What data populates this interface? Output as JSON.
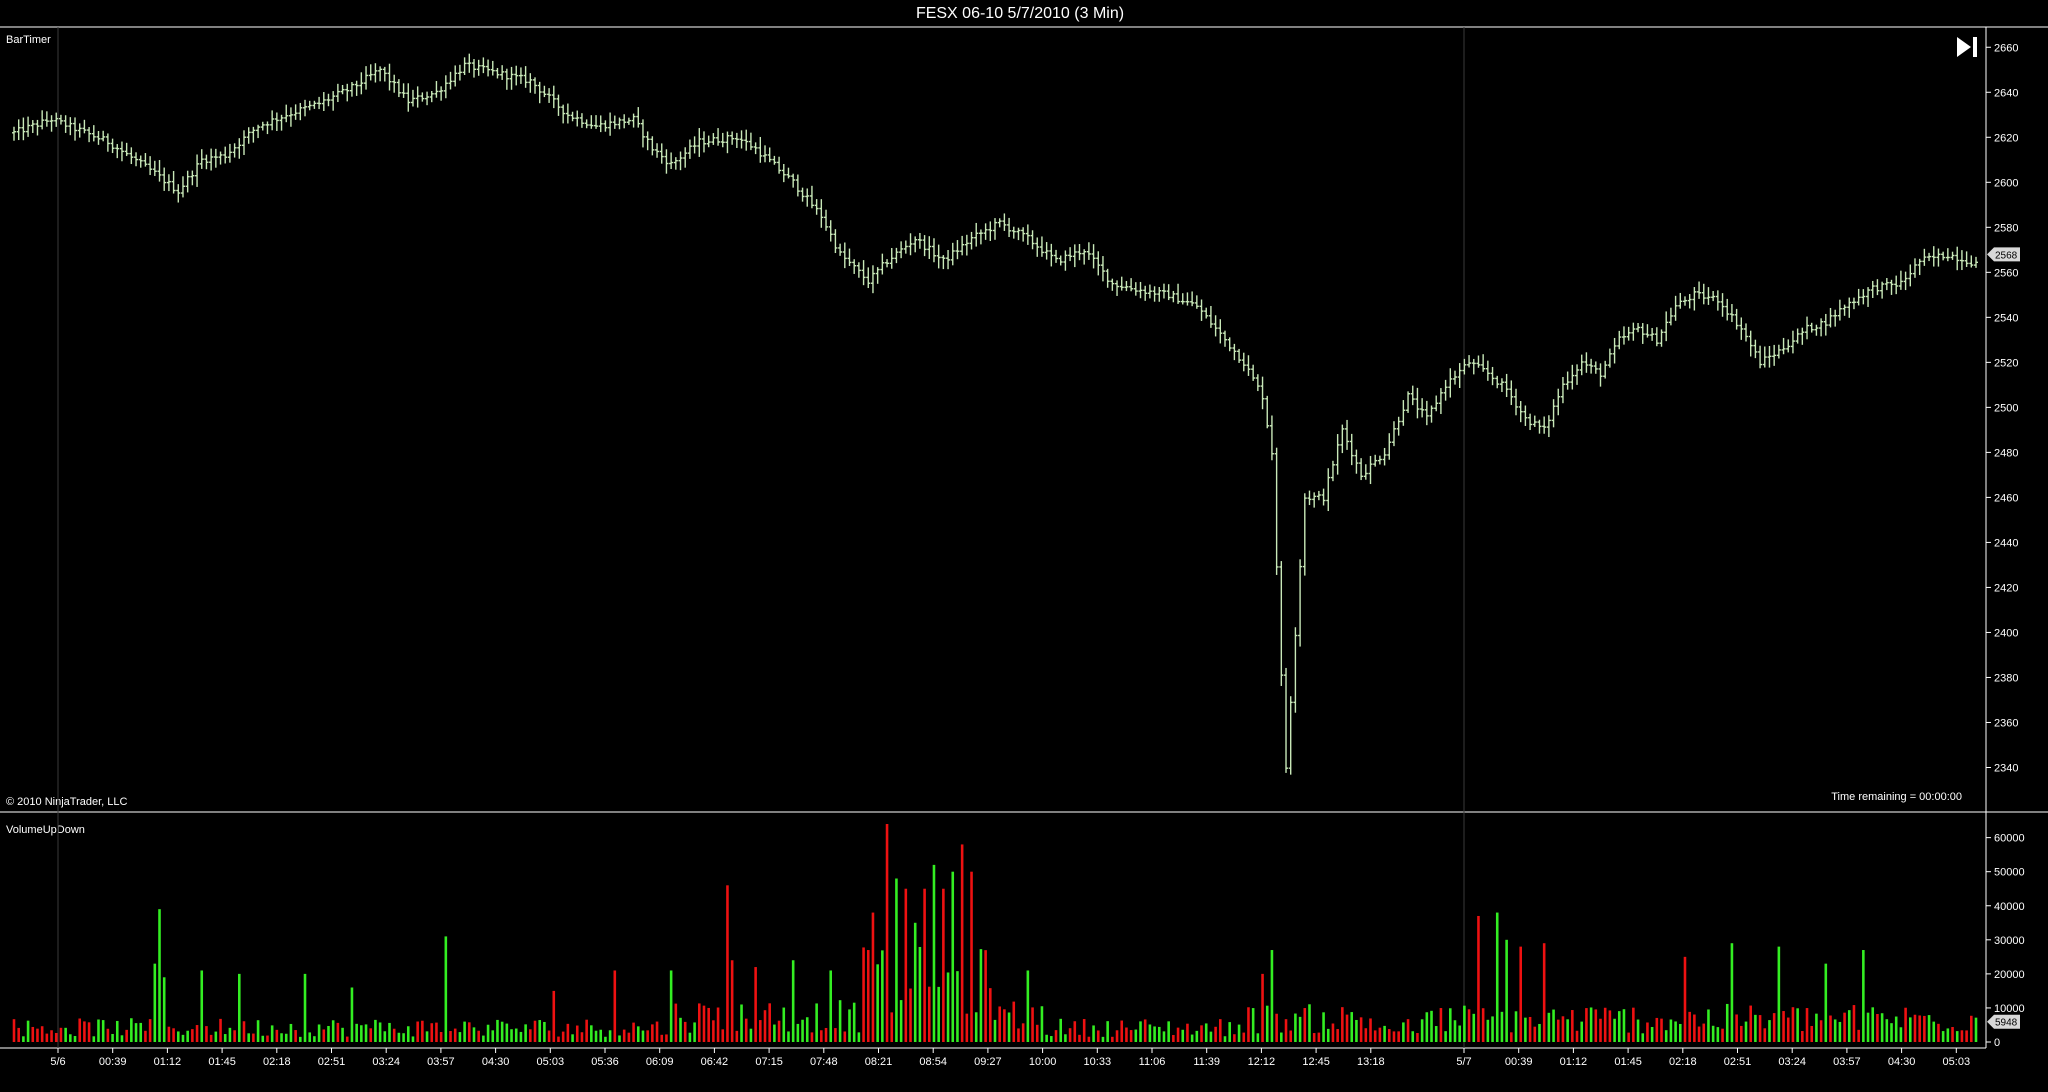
{
  "window": {
    "title": "FESX 06-10  5/7/2010 (3 Min)"
  },
  "price_panel": {
    "indicator_label": "BarTimer",
    "copyright": "© 2010 NinjaTrader, LLC",
    "time_remaining": "Time remaining = 00:00:00",
    "last_price_label": "2568",
    "scroll_icon": "skip-to-end-icon"
  },
  "volume_panel": {
    "indicator_label": "VolumeUpDown",
    "last_volume_label": "5948"
  },
  "x_axis": {
    "ticks": [
      "5/6",
      "00:39",
      "01:12",
      "01:45",
      "02:18",
      "02:51",
      "03:24",
      "03:57",
      "04:30",
      "05:03",
      "05:36",
      "06:09",
      "06:42",
      "07:15",
      "07:48",
      "08:21",
      "08:54",
      "09:27",
      "10:00",
      "10:33",
      "11:06",
      "11:39",
      "12:12",
      "12:45",
      "13:18",
      "5/7",
      "00:39",
      "01:12",
      "01:45",
      "02:18",
      "02:51",
      "03:24",
      "03:57",
      "04:30",
      "05:03"
    ]
  },
  "colors": {
    "background": "#000000",
    "price_bar": "#c8e8b8",
    "volume_up": "#33ee22",
    "volume_down": "#ee1111",
    "badge": "#d8d8d8"
  },
  "chart_data": [
    {
      "type": "line",
      "chart_style": "ohlc-bars",
      "ylim": [
        2330,
        2665
      ],
      "yticks": [
        2340,
        2360,
        2380,
        2400,
        2420,
        2440,
        2460,
        2480,
        2500,
        2520,
        2540,
        2560,
        2580,
        2600,
        2620,
        2640,
        2660
      ],
      "anchors": [
        [
          0,
          2622
        ],
        [
          8,
          2628
        ],
        [
          20,
          2618
        ],
        [
          30,
          2604
        ],
        [
          35,
          2596
        ],
        [
          40,
          2610
        ],
        [
          45,
          2612
        ],
        [
          52,
          2625
        ],
        [
          58,
          2630
        ],
        [
          65,
          2635
        ],
        [
          72,
          2642
        ],
        [
          78,
          2650
        ],
        [
          84,
          2636
        ],
        [
          90,
          2640
        ],
        [
          96,
          2652
        ],
        [
          104,
          2648
        ],
        [
          110,
          2645
        ],
        [
          118,
          2630
        ],
        [
          124,
          2625
        ],
        [
          132,
          2628
        ],
        [
          136,
          2615
        ],
        [
          140,
          2608
        ],
        [
          146,
          2618
        ],
        [
          154,
          2620
        ],
        [
          158,
          2615
        ],
        [
          166,
          2600
        ],
        [
          172,
          2585
        ],
        [
          176,
          2568
        ],
        [
          182,
          2556
        ],
        [
          186,
          2565
        ],
        [
          192,
          2575
        ],
        [
          198,
          2565
        ],
        [
          204,
          2575
        ],
        [
          210,
          2582
        ],
        [
          216,
          2575
        ],
        [
          222,
          2565
        ],
        [
          228,
          2570
        ],
        [
          234,
          2555
        ],
        [
          240,
          2552
        ],
        [
          246,
          2550
        ],
        [
          252,
          2545
        ],
        [
          258,
          2530
        ],
        [
          262,
          2520
        ],
        [
          266,
          2505
        ],
        [
          268,
          2480
        ],
        [
          270,
          2380
        ],
        [
          271,
          2340
        ],
        [
          273,
          2400
        ],
        [
          275,
          2460
        ],
        [
          279,
          2460
        ],
        [
          283,
          2490
        ],
        [
          287,
          2470
        ],
        [
          292,
          2480
        ],
        [
          297,
          2505
        ],
        [
          301,
          2495
        ],
        [
          305,
          2510
        ],
        [
          310,
          2520
        ],
        [
          314,
          2515
        ],
        [
          318,
          2508
        ],
        [
          322,
          2495
        ],
        [
          326,
          2490
        ],
        [
          330,
          2510
        ],
        [
          334,
          2520
        ],
        [
          338,
          2515
        ],
        [
          342,
          2530
        ],
        [
          346,
          2535
        ],
        [
          350,
          2530
        ],
        [
          354,
          2545
        ],
        [
          358,
          2550
        ],
        [
          363,
          2548
        ],
        [
          368,
          2535
        ],
        [
          372,
          2520
        ],
        [
          376,
          2525
        ],
        [
          382,
          2535
        ],
        [
          386,
          2538
        ],
        [
          390,
          2545
        ],
        [
          396,
          2553
        ],
        [
          402,
          2555
        ],
        [
          406,
          2565
        ],
        [
          412,
          2568
        ],
        [
          418,
          2564
        ]
      ],
      "last_price": 2568
    },
    {
      "type": "bar",
      "ylim": [
        0,
        64000
      ],
      "yticks": [
        0,
        10000,
        20000,
        30000,
        40000,
        50000,
        60000
      ],
      "bar_count": 419,
      "spikes": [
        [
          30,
          23000,
          "up"
        ],
        [
          31,
          39000,
          "up"
        ],
        [
          32,
          19000,
          "up"
        ],
        [
          40,
          21000,
          "up"
        ],
        [
          48,
          20000,
          "up"
        ],
        [
          62,
          20000,
          "up"
        ],
        [
          72,
          16000,
          "up"
        ],
        [
          92,
          31000,
          "up"
        ],
        [
          115,
          15000,
          "down"
        ],
        [
          128,
          21000,
          "down"
        ],
        [
          140,
          21000,
          "up"
        ],
        [
          152,
          46000,
          "down"
        ],
        [
          153,
          24000,
          "down"
        ],
        [
          158,
          22000,
          "down"
        ],
        [
          166,
          24000,
          "up"
        ],
        [
          174,
          21000,
          "up"
        ],
        [
          182,
          27000,
          "down"
        ],
        [
          183,
          38000,
          "down"
        ],
        [
          186,
          64000,
          "down"
        ],
        [
          188,
          48000,
          "up"
        ],
        [
          190,
          45000,
          "down"
        ],
        [
          192,
          35000,
          "up"
        ],
        [
          194,
          45000,
          "down"
        ],
        [
          196,
          52000,
          "up"
        ],
        [
          198,
          45000,
          "down"
        ],
        [
          200,
          50000,
          "up"
        ],
        [
          202,
          58000,
          "down"
        ],
        [
          204,
          50000,
          "down"
        ],
        [
          216,
          21000,
          "up"
        ],
        [
          266,
          20000,
          "down"
        ],
        [
          268,
          27000,
          "up"
        ],
        [
          312,
          37000,
          "down"
        ],
        [
          316,
          38000,
          "up"
        ],
        [
          318,
          30000,
          "up"
        ],
        [
          321,
          28000,
          "down"
        ],
        [
          326,
          29000,
          "down"
        ],
        [
          356,
          25000,
          "down"
        ],
        [
          366,
          29000,
          "up"
        ],
        [
          376,
          28000,
          "up"
        ],
        [
          386,
          23000,
          "up"
        ],
        [
          394,
          27000,
          "up"
        ]
      ],
      "last_volume": 5948
    }
  ]
}
